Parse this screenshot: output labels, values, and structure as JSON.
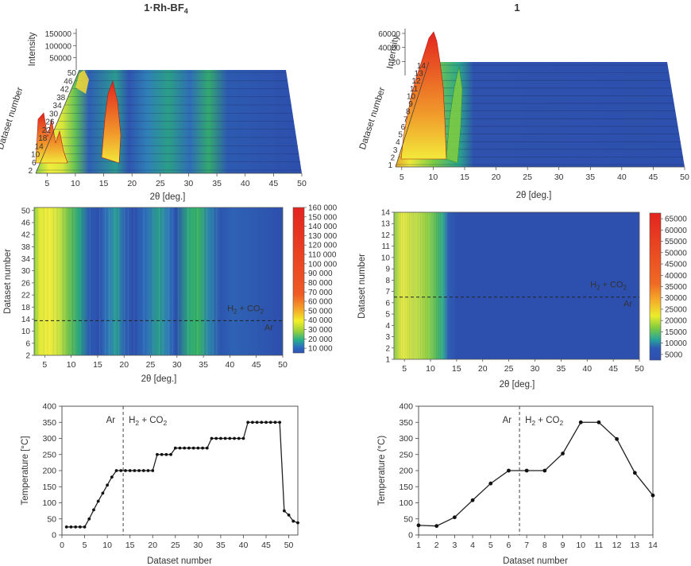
{
  "panels": {
    "left_title": "1·Rh-BF",
    "left_title_sub": "4",
    "right_title": "1"
  },
  "labels": {
    "two_theta": "2θ [deg.]",
    "intensity": "Intensity",
    "dataset_number": "Dataset number",
    "temperature": "Temperature [°C]",
    "temperature_right": "Temperature (°C)",
    "gas_ar": "Ar",
    "gas_h2co2": "H₂ + CO₂"
  },
  "chart_data": [
    {
      "id": "left-3d",
      "type": "area",
      "title": "1·Rh-BF4",
      "xlabel": "2θ [deg.]",
      "ylabel": "Dataset number",
      "zlabel": "Intensity",
      "xlim": [
        3,
        50
      ],
      "x_ticks": [
        "5",
        "10",
        "15",
        "20",
        "25",
        "30",
        "35",
        "40",
        "45",
        "50"
      ],
      "y_ticks": [
        "2",
        "6",
        "10",
        "14",
        "18",
        "22",
        "26",
        "30",
        "34",
        "38",
        "42",
        "46",
        "50"
      ],
      "z_ticks": [
        "50000",
        "100000",
        "150000"
      ]
    },
    {
      "id": "right-3d",
      "type": "area",
      "title": "1",
      "xlabel": "2θ [deg.]",
      "ylabel": "Dataset number",
      "zlabel": "Intensity",
      "xlim": [
        3,
        50
      ],
      "x_ticks": [
        "5",
        "10",
        "15",
        "20",
        "25",
        "30",
        "35",
        "40",
        "45",
        "50"
      ],
      "y_ticks": [
        "1",
        "2",
        "3",
        "4",
        "5",
        "6",
        "7",
        "8",
        "9",
        "10",
        "11",
        "12",
        "13",
        "14"
      ],
      "z_ticks": [
        "20",
        "40000",
        "60000"
      ]
    },
    {
      "id": "left-heatmap",
      "type": "heatmap",
      "xlabel": "2θ [deg.]",
      "ylabel": "Dataset number",
      "xlim": [
        3,
        50
      ],
      "ylim": [
        2,
        51
      ],
      "x_ticks": [
        5,
        10,
        15,
        20,
        25,
        30,
        35,
        40,
        45,
        50
      ],
      "y_ticks": [
        2,
        6,
        10,
        14,
        18,
        22,
        26,
        30,
        34,
        38,
        42,
        46,
        50
      ],
      "gas_switch_dataset": 13.5,
      "colorbar_ticks": [
        "10 000",
        "20 000",
        "30 000",
        "40 000",
        "50 000",
        "60 000",
        "70 000",
        "80 000",
        "90 000",
        "100 000",
        "110 000",
        "120 000",
        "130 000",
        "140 000",
        "150 000",
        "160 000"
      ],
      "colorbar_range": [
        5000,
        160000
      ]
    },
    {
      "id": "right-heatmap",
      "type": "heatmap",
      "xlabel": "2θ [deg.]",
      "ylabel": "Dataset number",
      "xlim": [
        3,
        50
      ],
      "ylim": [
        1,
        14
      ],
      "x_ticks": [
        5,
        10,
        15,
        20,
        25,
        30,
        35,
        40,
        45,
        50
      ],
      "y_ticks": [
        1,
        2,
        3,
        4,
        5,
        6,
        7,
        8,
        9,
        10,
        11,
        12,
        13,
        14
      ],
      "gas_switch_dataset": 6.5,
      "colorbar_ticks": [
        "5000",
        "10000",
        "15000",
        "20000",
        "25000",
        "30000",
        "35000",
        "40000",
        "45000",
        "50000",
        "55000",
        "60000",
        "65000"
      ],
      "colorbar_range": [
        2500,
        67500
      ]
    },
    {
      "id": "left-temperature",
      "type": "line",
      "xlabel": "Dataset number",
      "ylabel": "Temperature [°C]",
      "xlim": [
        0,
        52
      ],
      "ylim": [
        0,
        400
      ],
      "x_ticks": [
        0,
        5,
        10,
        15,
        20,
        25,
        30,
        35,
        40,
        45,
        50
      ],
      "y_ticks": [
        0,
        50,
        100,
        150,
        200,
        250,
        300,
        350,
        400
      ],
      "gas_switch_dataset": 13.5,
      "x": [
        1,
        2,
        3,
        4,
        5,
        6,
        7,
        8,
        9,
        10,
        11,
        12,
        13,
        14,
        15,
        16,
        17,
        18,
        19,
        20,
        21,
        22,
        23,
        24,
        25,
        26,
        27,
        28,
        29,
        30,
        31,
        32,
        33,
        34,
        35,
        36,
        37,
        38,
        39,
        40,
        41,
        42,
        43,
        44,
        45,
        46,
        47,
        48,
        49,
        50,
        51,
        52
      ],
      "y": [
        25,
        25,
        25,
        25,
        25,
        50,
        78,
        105,
        130,
        155,
        180,
        200,
        200,
        200,
        200,
        200,
        200,
        200,
        200,
        200,
        250,
        250,
        250,
        250,
        270,
        270,
        270,
        270,
        270,
        270,
        270,
        270,
        300,
        300,
        300,
        300,
        300,
        300,
        300,
        300,
        350,
        350,
        350,
        350,
        350,
        350,
        350,
        350,
        75,
        62,
        43,
        38
      ]
    },
    {
      "id": "right-temperature",
      "type": "line",
      "xlabel": "Dataset number",
      "ylabel": "Temperature (°C)",
      "xlim": [
        1,
        14
      ],
      "ylim": [
        0,
        400
      ],
      "x_ticks": [
        1,
        2,
        3,
        4,
        5,
        6,
        7,
        8,
        9,
        10,
        11,
        12,
        13,
        14
      ],
      "y_ticks": [
        0,
        50,
        100,
        150,
        200,
        250,
        300,
        350,
        400
      ],
      "gas_switch_dataset": 6.6,
      "x": [
        1,
        2,
        3,
        4,
        5,
        6,
        7,
        8,
        9,
        10,
        11,
        12,
        13,
        14
      ],
      "y": [
        30,
        28,
        55,
        108,
        160,
        200,
        200,
        200,
        253,
        350,
        350,
        298,
        193,
        123
      ]
    }
  ]
}
